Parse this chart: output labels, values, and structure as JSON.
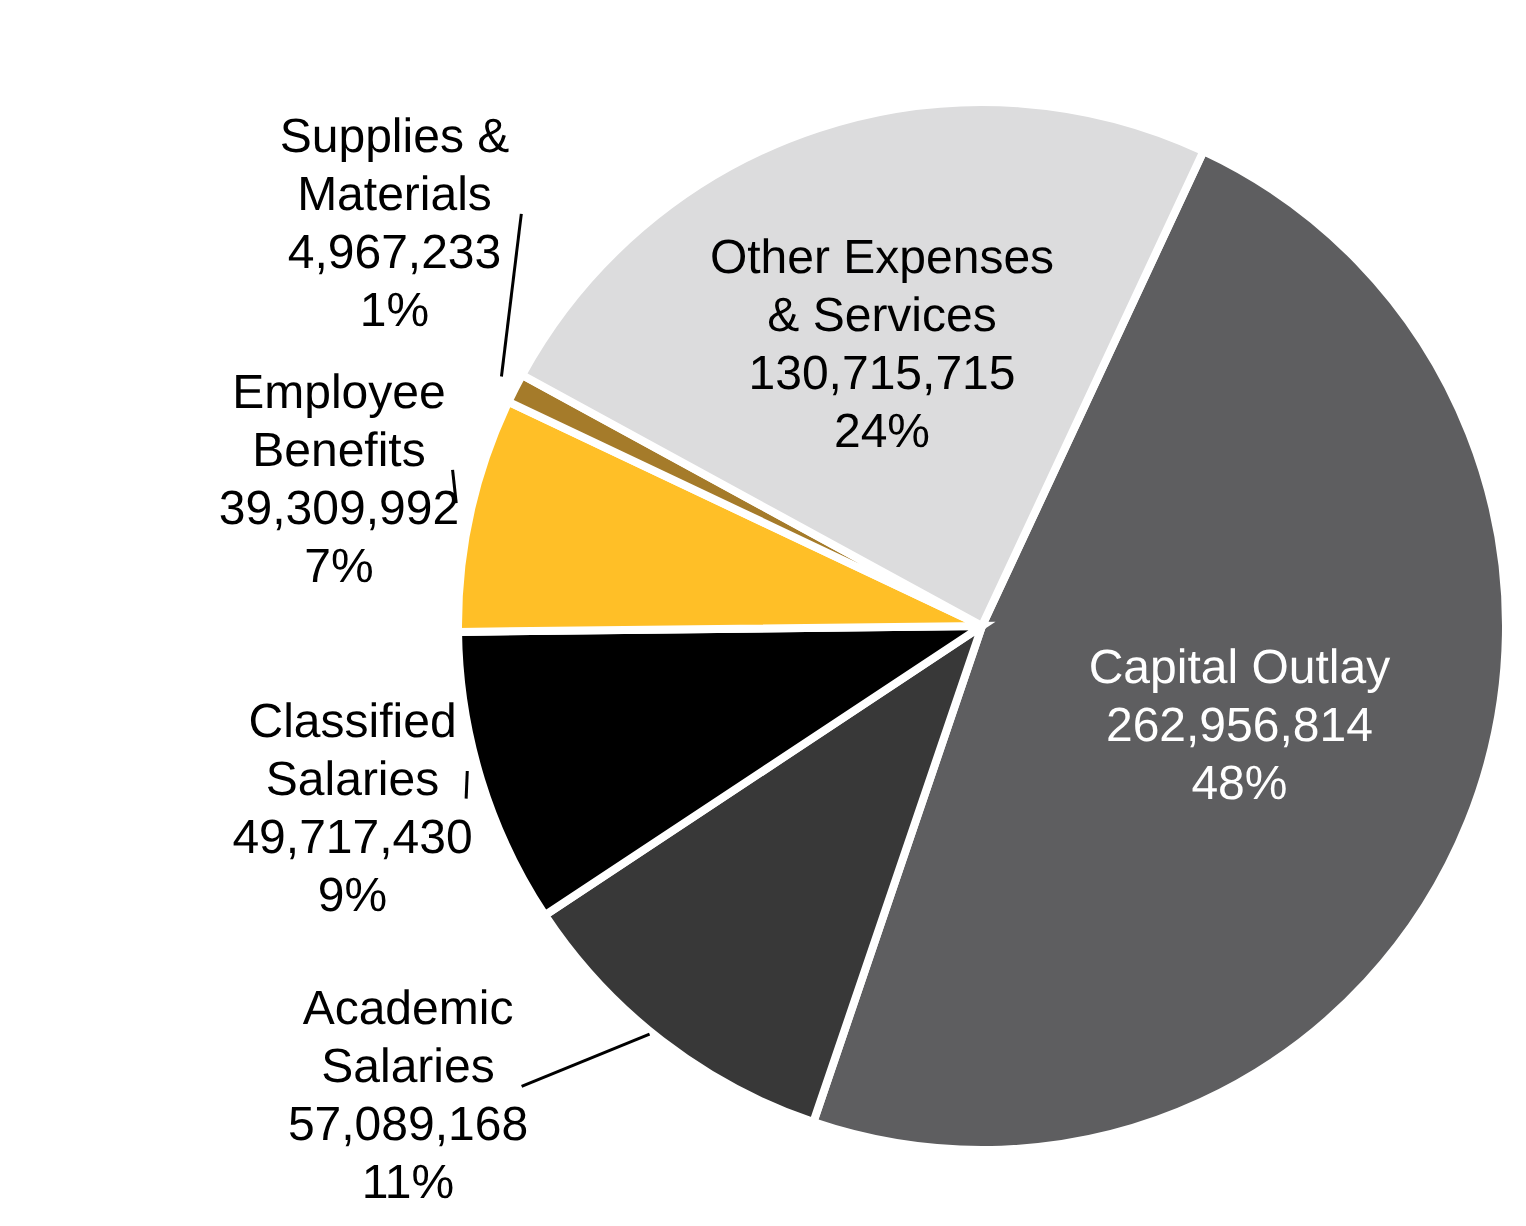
{
  "chart_data": {
    "type": "pie",
    "categories": [
      "Capital Outlay",
      "Academic Salaries",
      "Classified Salaries",
      "Employee Benefits",
      "Supplies & Materials",
      "Other Expenses & Services"
    ],
    "values": [
      262956814,
      57089168,
      49717430,
      39309992,
      4967233,
      130715715
    ],
    "value_labels": [
      "262,956,814\n48%",
      "57,089,168\n11%",
      "49,717,430\n9%",
      "39,309,992\n7%",
      "4,967,233\n1%",
      "130,715,715\n24%"
    ],
    "colors": [
      "#5e5e60",
      "#383838",
      "#000000",
      "#ffbf27",
      "#a57b2a",
      "#dcdcdd"
    ],
    "legend": false
  }
}
